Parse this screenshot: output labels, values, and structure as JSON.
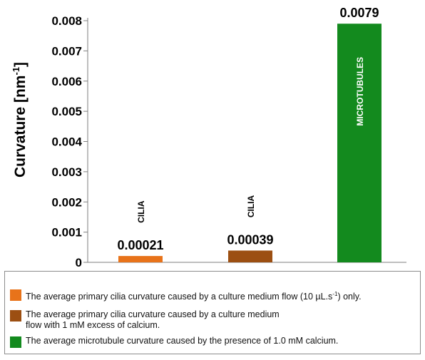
{
  "chart_data": {
    "type": "bar",
    "ylabel": "Curvature [nm",
    "ylabel_sup": "-1",
    "ylabel_close": "]",
    "ylim": [
      0,
      0.008
    ],
    "yticks": [
      "0",
      "0.001",
      "0.002",
      "0.003",
      "0.004",
      "0.005",
      "0.006",
      "0.007",
      "0.008"
    ],
    "grid": false,
    "bars": [
      {
        "category": "",
        "value": 0.00021,
        "value_label": "0.00021",
        "inner_label": "",
        "top_label": "CILIA",
        "color": "#e8731a"
      },
      {
        "category": "",
        "value": 0.00039,
        "value_label": "0.00039",
        "inner_label": "",
        "top_label": "CILIA",
        "color": "#9c4f12"
      },
      {
        "category": "",
        "value": 0.0079,
        "value_label": "0.0079",
        "inner_label": "MICROTUBULES",
        "top_label": "",
        "color": "#138a1e"
      }
    ]
  },
  "legend": {
    "items": [
      {
        "text": "The average primary cilia curvature caused by a  culture medium flow  (10 µL.s",
        "sup": "-1",
        "text_after": ") only.",
        "color": "#e8731a"
      },
      {
        "text": "The average primary cilia curvature caused by a culture medium flow  with 1 mM excess of calcium.",
        "sup": "",
        "text_after": "",
        "color": "#9c4f12"
      },
      {
        "text": "The average microtubule curvature caused by the presence of 1.0 mM calcium.",
        "sup": "",
        "text_after": "",
        "color": "#138a1e"
      }
    ]
  }
}
